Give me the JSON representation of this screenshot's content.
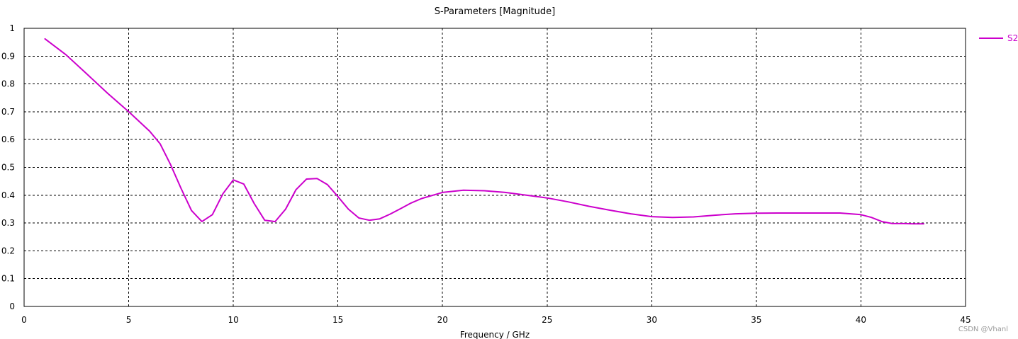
{
  "chart_data": {
    "type": "line",
    "title": "S-Parameters [Magnitude]",
    "xlabel": "Frequency / GHz",
    "ylabel": "",
    "xlim": [
      0,
      45
    ],
    "ylim": [
      0,
      1
    ],
    "x_ticks": [
      "0",
      "5",
      "10",
      "15",
      "20",
      "25",
      "30",
      "35",
      "40",
      "45"
    ],
    "y_ticks": [
      "0",
      "0.1",
      "0.2",
      "0.3",
      "0.4",
      "0.5",
      "0.6",
      "0.7",
      "0.8",
      "0.9",
      "1"
    ],
    "grid": true,
    "legend": "right",
    "series": [
      {
        "name": "S2",
        "color": "#cc00cc",
        "x": [
          1.0,
          2.0,
          3.0,
          4.0,
          5.0,
          6.0,
          6.5,
          7.0,
          7.5,
          8.0,
          8.5,
          9.0,
          9.5,
          10.0,
          10.5,
          11.0,
          11.5,
          12.0,
          12.5,
          13.0,
          13.5,
          14.0,
          14.5,
          15.0,
          15.5,
          16.0,
          16.5,
          17.0,
          17.5,
          18.0,
          18.5,
          19.0,
          20.0,
          21.0,
          22.0,
          23.0,
          24.0,
          25.0,
          26.0,
          27.0,
          28.0,
          29.0,
          30.0,
          31.0,
          32.0,
          33.0,
          34.0,
          35.0,
          36.0,
          37.0,
          38.0,
          39.0,
          40.0,
          40.5,
          41.0,
          41.5,
          42.0,
          42.5,
          43.0
        ],
        "values": [
          0.962,
          0.905,
          0.836,
          0.766,
          0.7,
          0.63,
          0.585,
          0.51,
          0.425,
          0.345,
          0.305,
          0.33,
          0.405,
          0.455,
          0.44,
          0.37,
          0.31,
          0.305,
          0.35,
          0.42,
          0.458,
          0.46,
          0.438,
          0.395,
          0.35,
          0.318,
          0.31,
          0.315,
          0.332,
          0.352,
          0.372,
          0.388,
          0.41,
          0.418,
          0.416,
          0.41,
          0.4,
          0.39,
          0.376,
          0.36,
          0.346,
          0.333,
          0.323,
          0.32,
          0.322,
          0.328,
          0.333,
          0.335,
          0.336,
          0.336,
          0.336,
          0.336,
          0.33,
          0.32,
          0.305,
          0.298,
          0.298,
          0.297,
          0.297
        ]
      }
    ]
  },
  "watermark": "CSDN @Vhanl"
}
